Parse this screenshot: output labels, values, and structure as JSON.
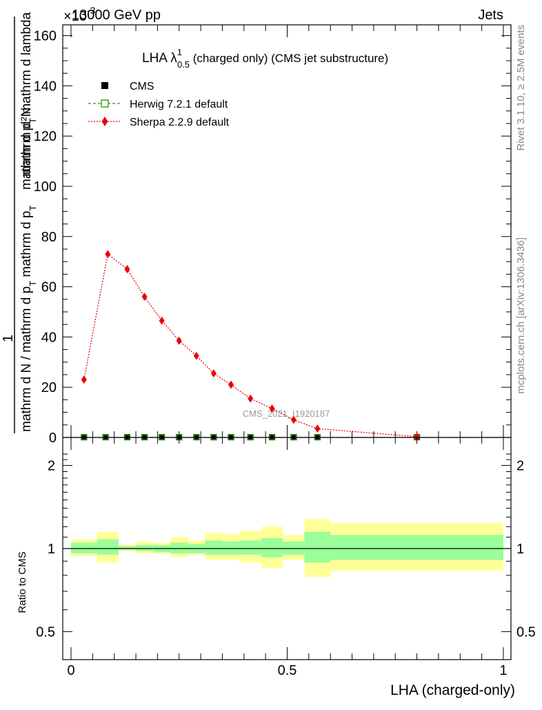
{
  "header": {
    "top_left": "13000 GeV pp",
    "top_right": "Jets",
    "exponent_label": "×10",
    "exponent_sup": "-3"
  },
  "side_labels": {
    "rivet": "Rivet 3.1.10, ≥ 2.5M events",
    "mcplots": "mcplots.cern.ch [arXiv:1306.3436]"
  },
  "main_title": {
    "prefix": "LHA λ",
    "sup": "1",
    "sub": "0.5",
    "suffix": " (charged only) (CMS jet substructure)"
  },
  "ylabel_main": {
    "numerator": "mathrm d²N",
    "middle": "mathrm d p",
    "middle_sub": "T",
    "middle_tail": " mathrm d lambda",
    "one": "1",
    "denominator": "mathrm d N / mathrm d p",
    "denominator_sub": "T",
    "denominator_tail": " mathrm d p",
    "denominator_sub2": "T"
  },
  "ylabel_ratio": "Ratio to CMS",
  "xlabel": "LHA (charged-only)",
  "watermark": "CMS_2021_I1920187",
  "legend": {
    "cms": "CMS",
    "herwig": "Herwig 7.2.1 default",
    "sherpa": "Sherpa 2.2.9 default"
  },
  "colors": {
    "cms": "#000000",
    "herwig": "#339900",
    "sherpa": "#ee0000",
    "band_inner": "#99ff99",
    "band_outer": "#ffff99",
    "axis": "#000000",
    "side_text": "#888888"
  },
  "chart_data": {
    "type": "line",
    "main": {
      "x_range": [
        0,
        1
      ],
      "y_range": [
        0,
        165
      ],
      "y_ticks": [
        0,
        20,
        40,
        60,
        80,
        100,
        120,
        140,
        160
      ],
      "x_ticks": [
        0,
        0.5,
        1
      ],
      "series": [
        {
          "name": "CMS",
          "x": [
            0.03,
            0.08,
            0.13,
            0.17,
            0.21,
            0.25,
            0.29,
            0.33,
            0.37,
            0.415,
            0.465,
            0.515,
            0.57,
            0.8
          ],
          "values": [
            0.1,
            0.1,
            0.1,
            0.1,
            0.1,
            0.1,
            0.1,
            0.1,
            0.1,
            0.1,
            0.1,
            0.1,
            0.1,
            0.1
          ]
        },
        {
          "name": "Herwig 7.2.1 default",
          "x": [
            0.03,
            0.08,
            0.13,
            0.17,
            0.21,
            0.25,
            0.29,
            0.33,
            0.37,
            0.415,
            0.465,
            0.515,
            0.57,
            0.8
          ],
          "values": [
            0.1,
            0.1,
            0.1,
            0.1,
            0.1,
            0.1,
            0.1,
            0.1,
            0.1,
            0.1,
            0.1,
            0.1,
            0.1,
            0.1
          ]
        },
        {
          "name": "Sherpa 2.2.9 default",
          "x": [
            0.03,
            0.085,
            0.13,
            0.17,
            0.21,
            0.25,
            0.29,
            0.33,
            0.37,
            0.415,
            0.465,
            0.515,
            0.57,
            0.8
          ],
          "values": [
            23,
            73,
            67,
            56,
            46.5,
            38.5,
            32.5,
            25.5,
            21,
            15.5,
            11.5,
            7,
            3.5,
            0.3
          ]
        }
      ]
    },
    "ratio": {
      "type": "area",
      "ylabel": "Ratio to CMS",
      "y_ticks": [
        0.5,
        1,
        2
      ],
      "reference": 1,
      "bins": [
        {
          "lo": 0.0,
          "hi": 0.06,
          "inner": [
            0.96,
            1.05
          ],
          "outer": [
            0.94,
            1.08
          ]
        },
        {
          "lo": 0.06,
          "hi": 0.11,
          "inner": [
            0.95,
            1.08
          ],
          "outer": [
            0.89,
            1.15
          ]
        },
        {
          "lo": 0.11,
          "hi": 0.15,
          "inner": [
            0.99,
            1.02
          ],
          "outer": [
            0.98,
            1.03
          ]
        },
        {
          "lo": 0.15,
          "hi": 0.19,
          "inner": [
            0.98,
            1.03
          ],
          "outer": [
            0.96,
            1.06
          ]
        },
        {
          "lo": 0.19,
          "hi": 0.23,
          "inner": [
            0.97,
            1.03
          ],
          "outer": [
            0.96,
            1.05
          ]
        },
        {
          "lo": 0.23,
          "hi": 0.27,
          "inner": [
            0.96,
            1.05
          ],
          "outer": [
            0.93,
            1.1
          ]
        },
        {
          "lo": 0.27,
          "hi": 0.31,
          "inner": [
            0.96,
            1.04
          ],
          "outer": [
            0.95,
            1.07
          ]
        },
        {
          "lo": 0.31,
          "hi": 0.35,
          "inner": [
            0.95,
            1.07
          ],
          "outer": [
            0.91,
            1.14
          ]
        },
        {
          "lo": 0.35,
          "hi": 0.39,
          "inner": [
            0.95,
            1.06
          ],
          "outer": [
            0.91,
            1.13
          ]
        },
        {
          "lo": 0.39,
          "hi": 0.44,
          "inner": [
            0.95,
            1.07
          ],
          "outer": [
            0.89,
            1.16
          ]
        },
        {
          "lo": 0.44,
          "hi": 0.49,
          "inner": [
            0.93,
            1.09
          ],
          "outer": [
            0.85,
            1.2
          ]
        },
        {
          "lo": 0.49,
          "hi": 0.54,
          "inner": [
            0.95,
            1.06
          ],
          "outer": [
            0.91,
            1.12
          ]
        },
        {
          "lo": 0.54,
          "hi": 0.6,
          "inner": [
            0.89,
            1.15
          ],
          "outer": [
            0.79,
            1.28
          ]
        },
        {
          "lo": 0.6,
          "hi": 1.0,
          "inner": [
            0.91,
            1.12
          ],
          "outer": [
            0.83,
            1.24
          ]
        }
      ]
    }
  }
}
